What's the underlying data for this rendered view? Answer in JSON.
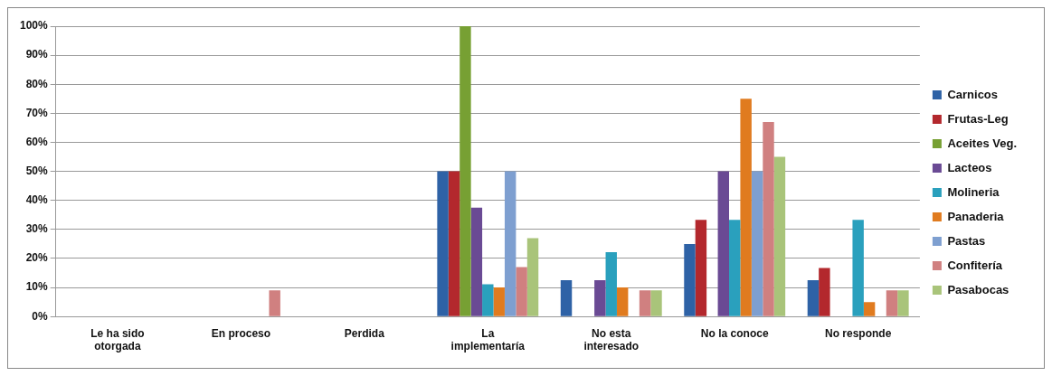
{
  "chart_data": {
    "type": "bar",
    "categories": [
      "Le ha sido otorgada",
      "En proceso",
      "Perdida",
      "La implementaría",
      "No esta interesado",
      "No la conoce",
      "No responde"
    ],
    "series": [
      {
        "name": "Carnicos",
        "color": "#2e62a6",
        "values": [
          0,
          0,
          0,
          50,
          12.5,
          25,
          12.5
        ]
      },
      {
        "name": "Frutas-Leg",
        "color": "#b3282d",
        "values": [
          0,
          0,
          0,
          50,
          0,
          33.3,
          16.7
        ]
      },
      {
        "name": "Aceites Veg.",
        "color": "#77a033",
        "values": [
          0,
          0,
          0,
          100,
          0,
          0,
          0
        ]
      },
      {
        "name": "Lacteos",
        "color": "#6a4a94",
        "values": [
          0,
          0,
          0,
          37.5,
          12.5,
          50,
          0
        ]
      },
      {
        "name": "Molineria",
        "color": "#2aa0bd",
        "values": [
          0,
          0,
          0,
          11.1,
          22.2,
          33.3,
          33.3
        ]
      },
      {
        "name": "Panaderia",
        "color": "#e07b1f",
        "values": [
          0,
          0,
          0,
          10,
          10,
          75,
          5
        ]
      },
      {
        "name": "Pastas",
        "color": "#7e9fd0",
        "values": [
          0,
          0,
          0,
          50,
          0,
          50,
          0
        ]
      },
      {
        "name": "Confitería",
        "color": "#d08080",
        "values": [
          0,
          9,
          0,
          17,
          9,
          67,
          9
        ]
      },
      {
        "name": "Pasabocas",
        "color": "#a9c47a",
        "values": [
          0,
          0,
          0,
          27,
          9,
          55,
          9
        ]
      }
    ],
    "ylim": [
      0,
      100
    ],
    "yticks": [
      {
        "value": 0,
        "label": "0%"
      },
      {
        "value": 10,
        "label": "10%"
      },
      {
        "value": 20,
        "label": "20%"
      },
      {
        "value": 30,
        "label": "30%"
      },
      {
        "value": 40,
        "label": "40%"
      },
      {
        "value": 50,
        "label": "50%"
      },
      {
        "value": 60,
        "label": "60%"
      },
      {
        "value": 70,
        "label": "70%"
      },
      {
        "value": 80,
        "label": "80%"
      },
      {
        "value": 90,
        "label": "90%"
      },
      {
        "value": 100,
        "label": "100%"
      }
    ],
    "grid": "y",
    "legend": "right"
  }
}
